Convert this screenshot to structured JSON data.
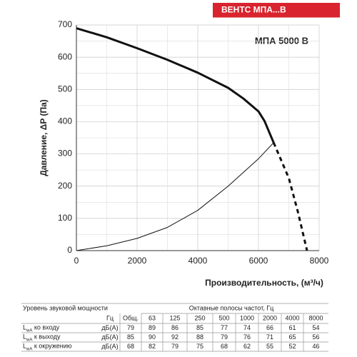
{
  "chart_data": {
    "type": "line",
    "badge": "ВЕНТС МПА...В",
    "annotation": "МПА 5000 В",
    "xlabel": "Производительность, (м³/ч)",
    "ylabel": "Давление, ΔP (Па)",
    "xlim": [
      0,
      8000
    ],
    "xticks": [
      0,
      2000,
      4000,
      6000,
      8000
    ],
    "ylim": [
      0,
      700
    ],
    "yticks": [
      0,
      100,
      200,
      300,
      400,
      500,
      600,
      700
    ],
    "grid": true,
    "series": [
      {
        "color": "#111111",
        "linewidth": 3,
        "linestyle": "solid",
        "x": [
          0,
          1000,
          2000,
          3000,
          4000,
          5000,
          5500,
          6000,
          6200,
          6500
        ],
        "values": [
          690,
          662,
          628,
          592,
          552,
          505,
          472,
          432,
          402,
          335
        ]
      },
      {
        "color": "#111111",
        "linewidth": 3,
        "linestyle": "dashed",
        "x": [
          6500,
          7000,
          7300,
          7600
        ],
        "values": [
          335,
          225,
          120,
          0
        ]
      },
      {
        "color": "#111111",
        "linewidth": 1,
        "linestyle": "solid",
        "x": [
          0,
          1000,
          2000,
          3000,
          4000,
          5000,
          6000,
          6500
        ],
        "values": [
          0,
          15,
          38,
          72,
          125,
          200,
          285,
          335
        ]
      }
    ]
  },
  "table": {
    "header": [
      "Уровень звуковой мощности",
      "Октавные полосы частот, Гц"
    ],
    "unit_header": "Гц",
    "bands": [
      "Общ.",
      "63",
      "125",
      "250",
      "500",
      "1000",
      "2000",
      "4000",
      "8000"
    ],
    "rows": [
      {
        "symbol": "L",
        "sub": "wA",
        "text": " ко входу",
        "unit": "дБ(А)",
        "values": [
          "79",
          "89",
          "86",
          "85",
          "77",
          "74",
          "66",
          "61",
          "54"
        ]
      },
      {
        "symbol": "L",
        "sub": "wA",
        "text": " к выходу",
        "unit": "дБ(А)",
        "values": [
          "85",
          "90",
          "92",
          "88",
          "79",
          "76",
          "71",
          "65",
          "56"
        ]
      },
      {
        "symbol": "L",
        "sub": "wA",
        "text": " к окружению",
        "unit": "дБ(А)",
        "values": [
          "68",
          "82",
          "79",
          "75",
          "68",
          "62",
          "55",
          "52",
          "46"
        ]
      }
    ]
  }
}
